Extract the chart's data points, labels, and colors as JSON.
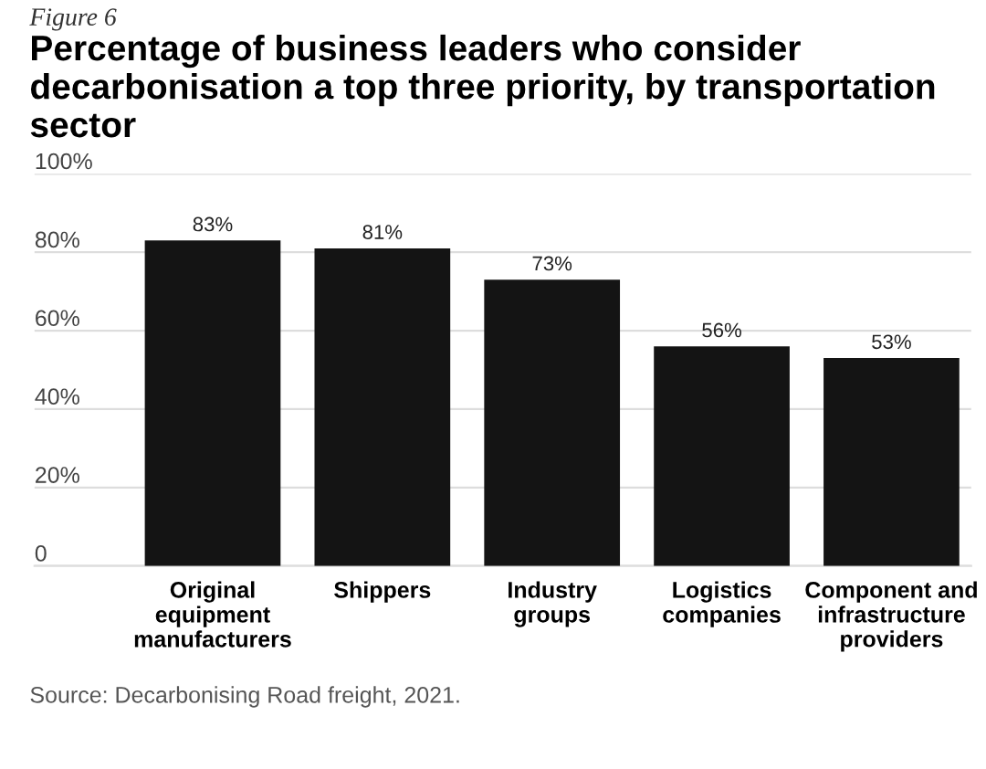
{
  "chart_data": {
    "type": "bar",
    "title": "Percentage of business leaders who consider decarbonisation a top three priority, by transportation sector",
    "categories": [
      "Original equipment manufacturers",
      "Shippers",
      "Industry groups",
      "Logistics companies",
      "Component and infrastructure providers"
    ],
    "values": [
      83,
      81,
      73,
      56,
      53
    ],
    "value_labels": [
      "83%",
      "81%",
      "73%",
      "56%",
      "53%"
    ],
    "color": "#141414",
    "ylim": [
      0,
      100
    ],
    "yticks": [
      {
        "value": 0,
        "label": "0"
      },
      {
        "value": 20,
        "label": "20%"
      },
      {
        "value": 40,
        "label": "40%"
      },
      {
        "value": 60,
        "label": "60%"
      },
      {
        "value": 80,
        "label": "80%"
      },
      {
        "value": 100,
        "label": "100%"
      }
    ],
    "grid": "y",
    "legend": false,
    "annotations": [
      "Figure 6",
      "Source: Decarbonising Road freight, 2021."
    ]
  }
}
